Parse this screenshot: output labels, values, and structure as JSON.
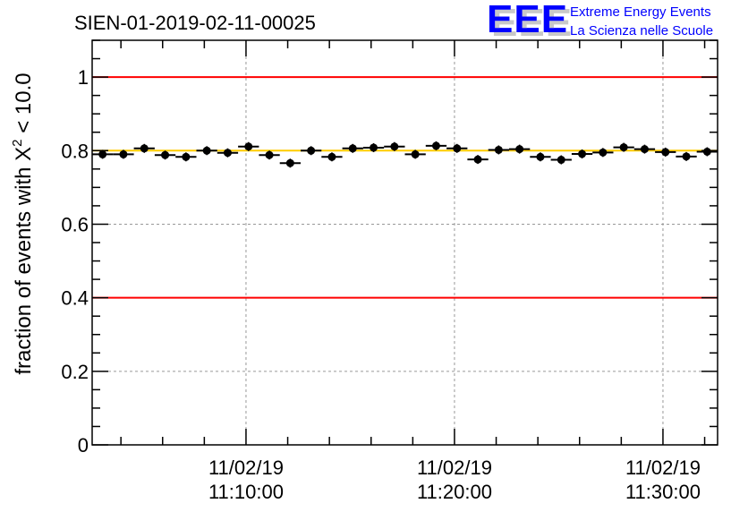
{
  "chart_data": {
    "type": "scatter",
    "title": "SIEN-01-2019-02-11-00025",
    "xlabel": "",
    "ylabel": "fraction of events with",
    "ylabel_symbol": "X",
    "ylabel_superscript": "2",
    "ylabel_suffix": "< 10.0",
    "ylim": [
      0,
      1.1
    ],
    "yticks": [
      0,
      0.2,
      0.4,
      0.6,
      0.8,
      1
    ],
    "ytick_labels": [
      "0",
      "0.2",
      "0.4",
      "0.6",
      "0.8",
      "1"
    ],
    "x_unit": "minutes relative to 11:10:00",
    "xlim": [
      -7.38,
      22.62
    ],
    "xticks": [
      0,
      10,
      20
    ],
    "xtick_labels": [
      {
        "date": "11/02/19",
        "time": "11:10:00"
      },
      {
        "date": "11/02/19",
        "time": "11:20:00"
      },
      {
        "date": "11/02/19",
        "time": "11:30:00"
      }
    ],
    "bin_width_minutes": 1,
    "x": [
      -6.88,
      -5.88,
      -4.88,
      -3.88,
      -2.88,
      -1.88,
      -0.88,
      0.12,
      1.12,
      2.12,
      3.12,
      4.12,
      5.12,
      6.12,
      7.12,
      8.12,
      9.12,
      10.12,
      11.12,
      12.12,
      13.12,
      14.12,
      15.12,
      16.12,
      17.12,
      18.12,
      19.12,
      20.12,
      21.12,
      22.12
    ],
    "values": [
      0.79,
      0.79,
      0.806,
      0.788,
      0.783,
      0.8,
      0.794,
      0.811,
      0.788,
      0.766,
      0.8,
      0.783,
      0.806,
      0.808,
      0.811,
      0.79,
      0.813,
      0.806,
      0.776,
      0.802,
      0.804,
      0.783,
      0.775,
      0.791,
      0.795,
      0.809,
      0.804,
      0.796,
      0.784,
      0.797
    ],
    "reference_lines": [
      {
        "value": 1.0,
        "color": "#ff0000"
      },
      {
        "value": 0.4,
        "color": "#ff0000"
      },
      {
        "value": 0.8,
        "color": "#ffcc00"
      }
    ],
    "grid": true
  },
  "logo": {
    "letters": "EEE",
    "line1": "Extreme Energy Events",
    "line2": "La Scienza nelle Scuole",
    "color": "#0000ff"
  }
}
